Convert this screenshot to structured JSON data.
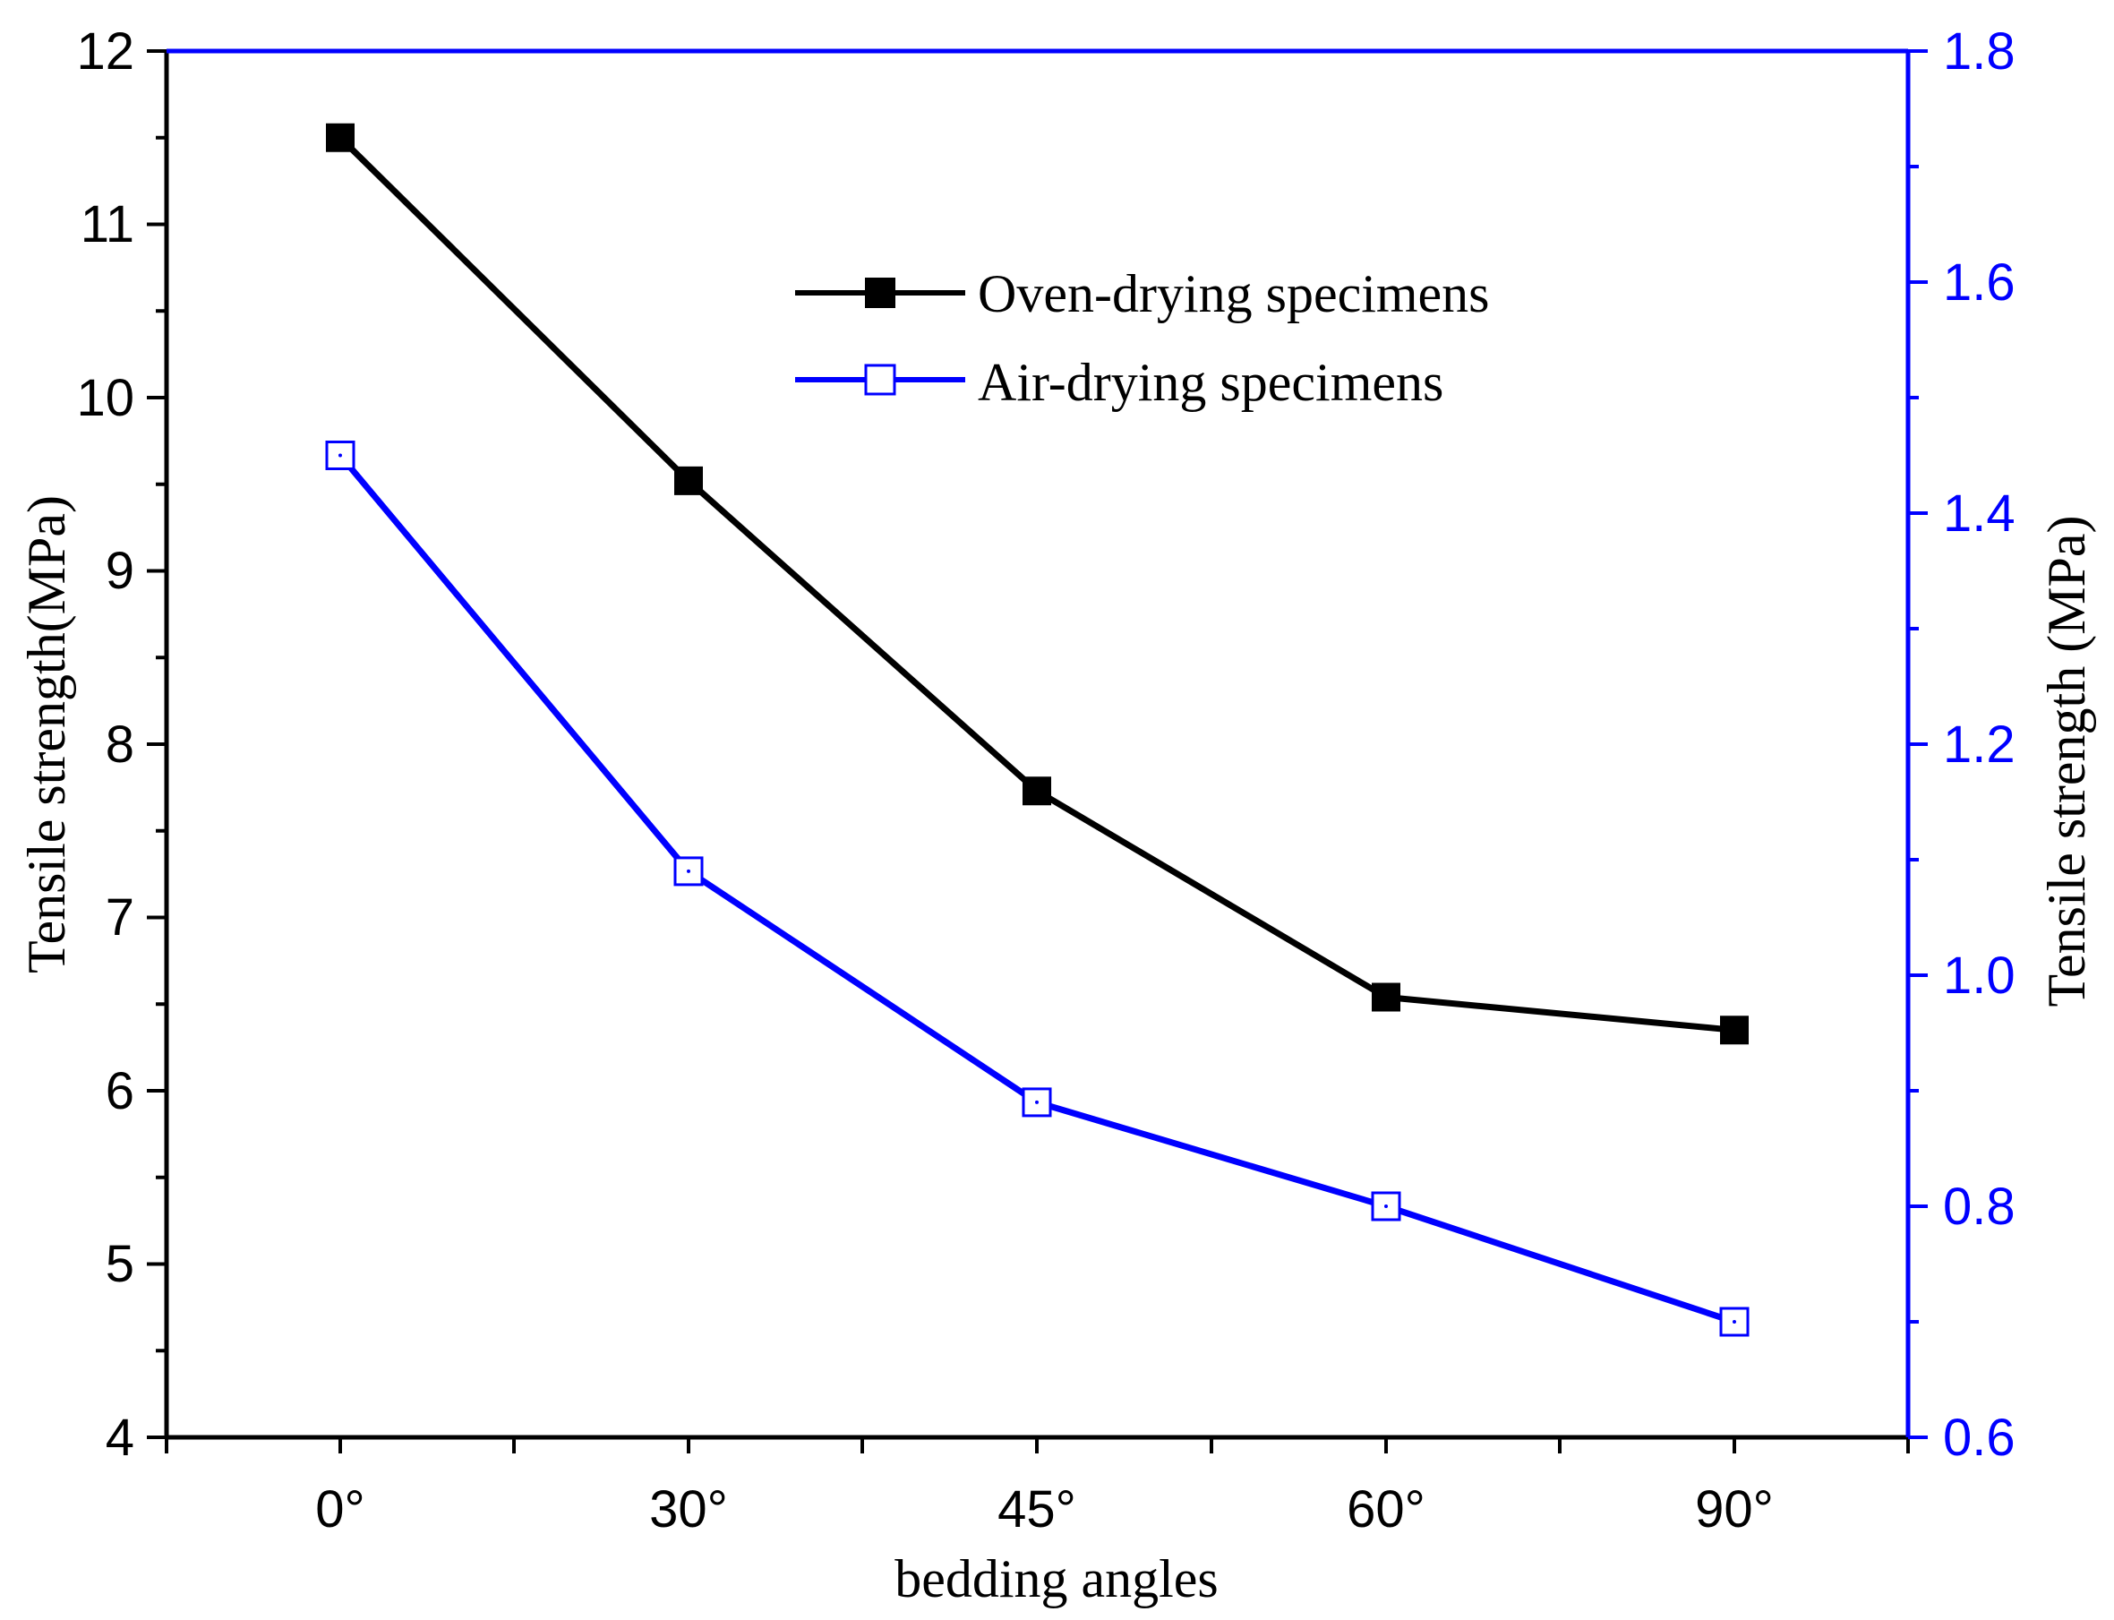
{
  "colors": {
    "left_axis": "#000000",
    "right_axis": "#0000ff",
    "series1": "#000000",
    "series2": "#0000ff"
  },
  "chart_data": {
    "type": "line",
    "categories": [
      "0°",
      "30°",
      "45°",
      "60°",
      "90°"
    ],
    "xlabel": "bedding angles",
    "ylabel_left": "Tensile strength(MPa)",
    "ylabel_right": "Tensile strength (MPa)",
    "ylim_left": [
      4,
      12
    ],
    "ylim_right": [
      0.6,
      1.8
    ],
    "yticks_left": [
      "4",
      "5",
      "6",
      "7",
      "8",
      "9",
      "10",
      "11",
      "12"
    ],
    "yticks_right": [
      "0.6",
      "0.8",
      "1.0",
      "1.2",
      "1.4",
      "1.6",
      "1.8"
    ],
    "legend_position": "upper-center",
    "series": [
      {
        "name": "Oven-drying specimens",
        "axis": "left",
        "marker": "filled-square",
        "values": [
          11.5,
          9.52,
          7.73,
          6.54,
          6.35
        ]
      },
      {
        "name": "Air-drying specimens",
        "axis": "right",
        "marker": "open-square",
        "values": [
          1.45,
          1.09,
          0.89,
          0.8,
          0.7
        ]
      }
    ]
  }
}
